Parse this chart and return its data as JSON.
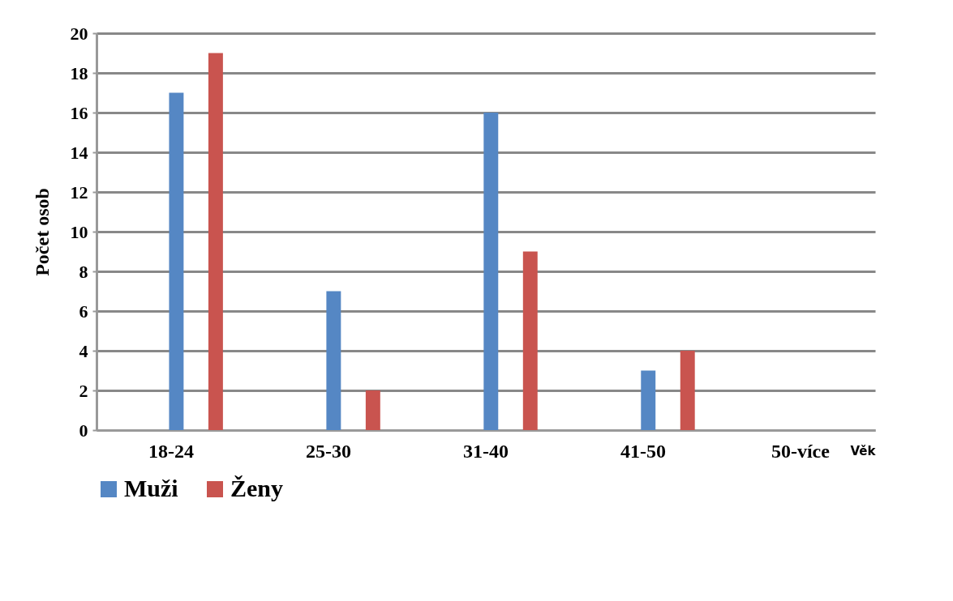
{
  "chart_data": {
    "type": "bar",
    "xlabel": "Věk",
    "ylabel": "Počet osob",
    "categories": [
      "18-24",
      "25-30",
      "31-40",
      "41-50",
      "50-více"
    ],
    "series": [
      {
        "name": "Muži",
        "color": "#5587c4",
        "values": [
          17,
          7,
          16,
          3,
          0
        ]
      },
      {
        "name": "Ženy",
        "color": "#c9544f",
        "values": [
          19,
          2,
          9,
          4,
          0
        ]
      }
    ],
    "ylim": [
      0,
      20
    ],
    "yticks": [
      0,
      2,
      4,
      6,
      8,
      10,
      12,
      14,
      16,
      18,
      20
    ],
    "grid": "y",
    "legend": "bottom"
  }
}
